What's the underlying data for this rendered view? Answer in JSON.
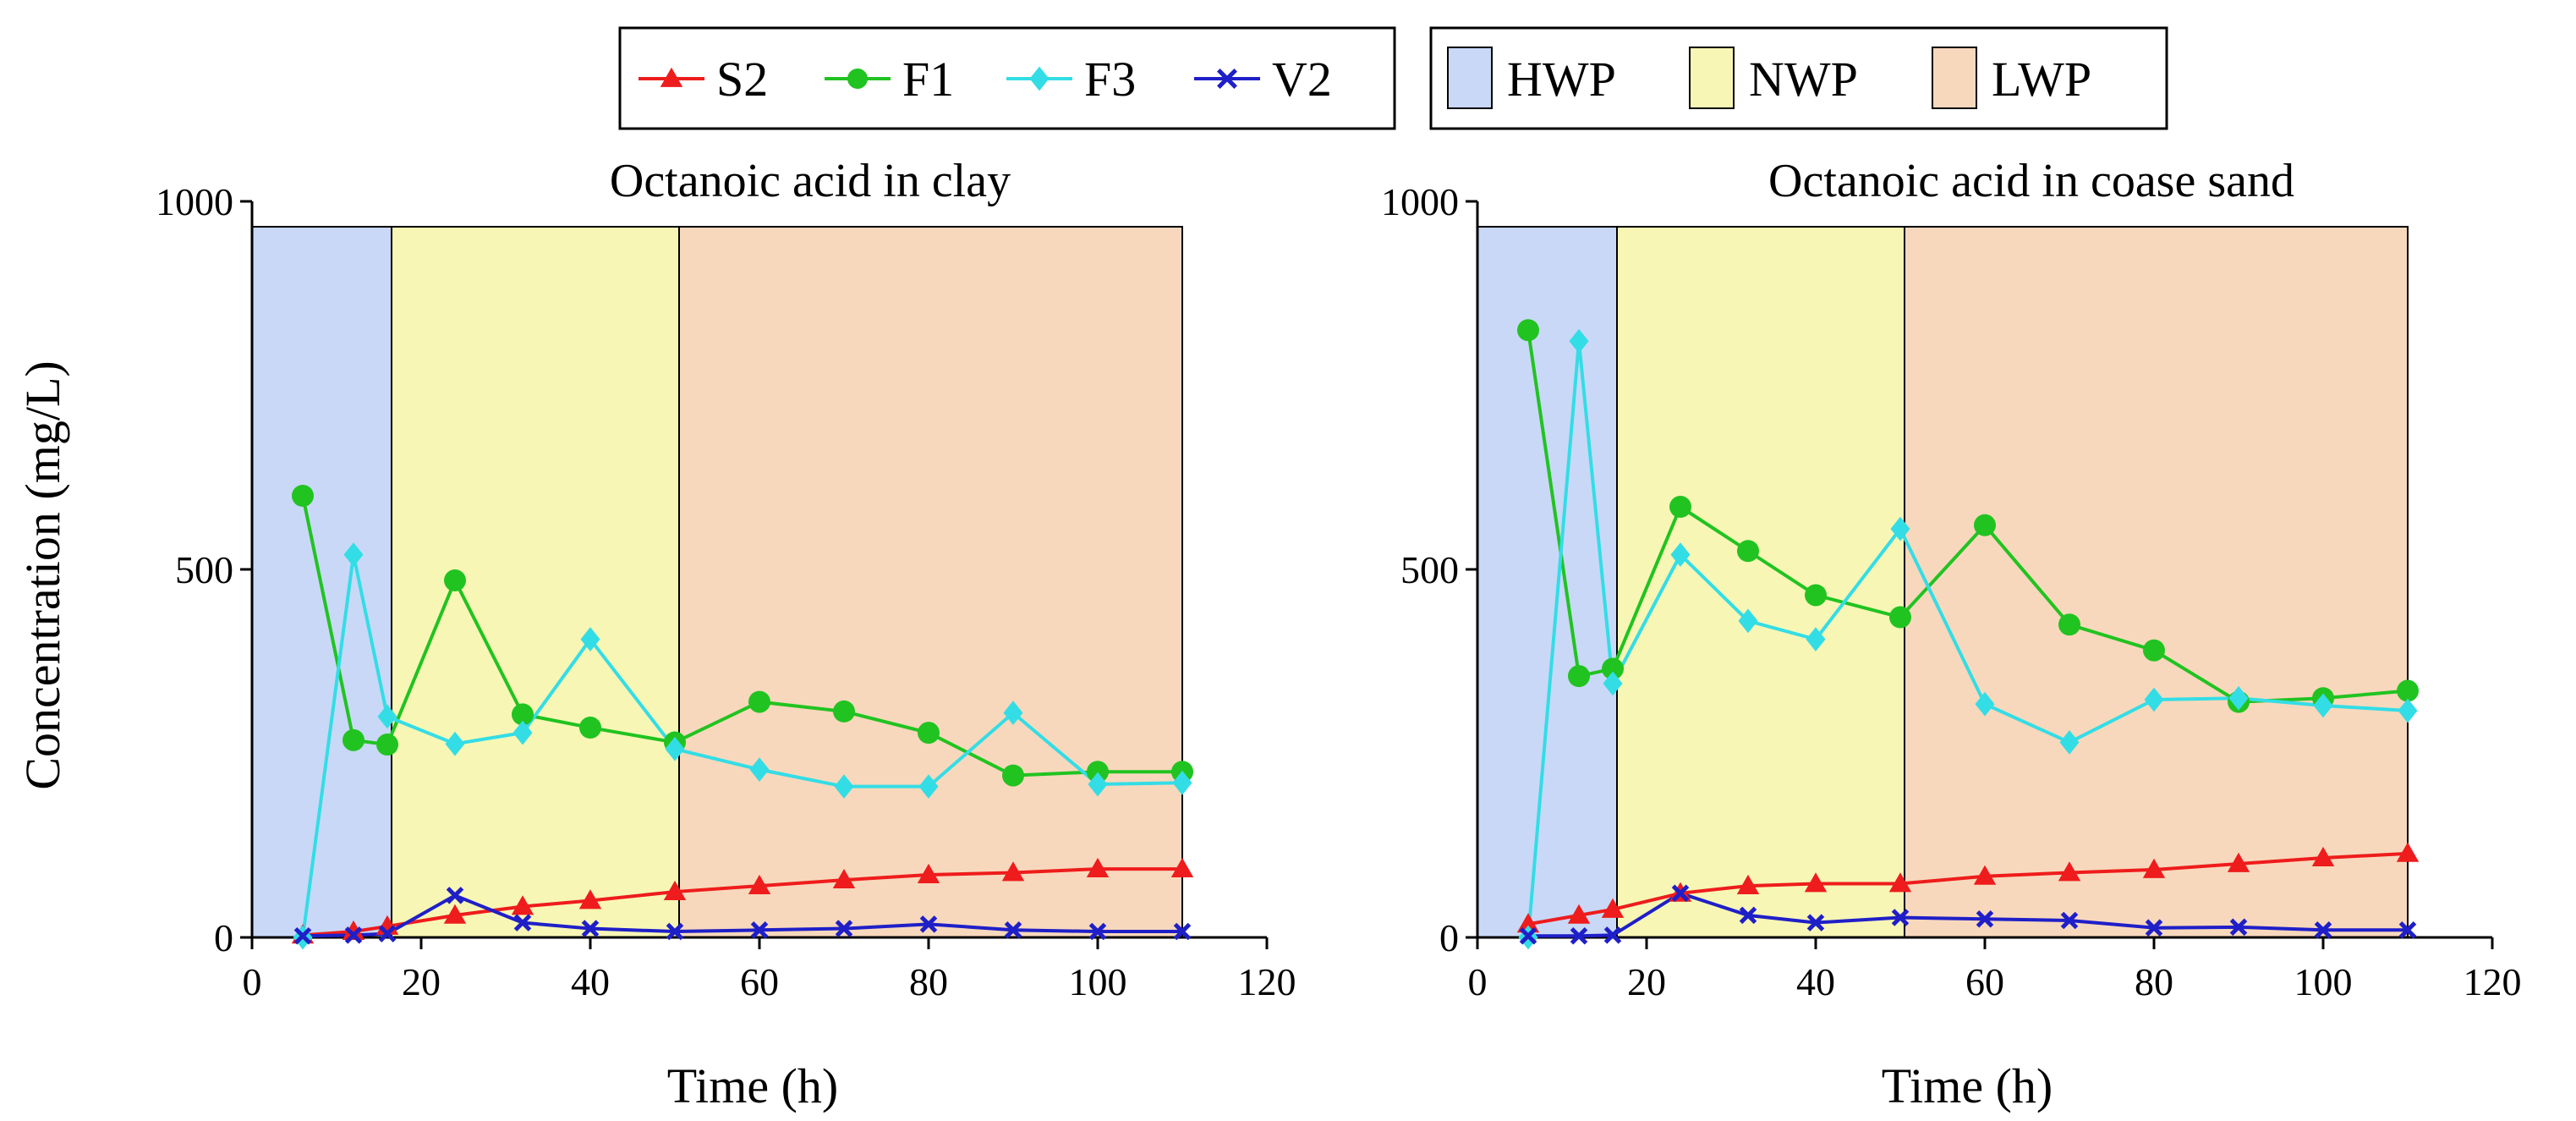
{
  "legend": {
    "series": [
      {
        "label": "S2",
        "color": "#ee1c1c",
        "marker": "triangle"
      },
      {
        "label": "F1",
        "color": "#21c321",
        "marker": "circle"
      },
      {
        "label": "F3",
        "color": "#33dde6",
        "marker": "diamond"
      },
      {
        "label": "V2",
        "color": "#1f1fc8",
        "marker": "x"
      }
    ],
    "phases": [
      {
        "label": "HWP",
        "color": "#c9d8f7"
      },
      {
        "label": "NWP",
        "color": "#f7f6b5"
      },
      {
        "label": "LWP",
        "color": "#f8d8bc"
      }
    ]
  },
  "y_axis_title": "Concentration (mg/L)",
  "chart_data": [
    {
      "type": "line",
      "title": "Octanoic acid in clay",
      "xlabel": "Time (h)",
      "ylabel": "Concentration (mg/L)",
      "xlim": [
        0,
        120
      ],
      "ylim": [
        0,
        1000
      ],
      "xticks": [
        0,
        20,
        40,
        60,
        80,
        100,
        120
      ],
      "yticks": [
        0,
        500,
        1000
      ],
      "phases": [
        {
          "label": "HWP",
          "start": 0,
          "end": 16.5
        },
        {
          "label": "NWP",
          "start": 16.5,
          "end": 50.5
        },
        {
          "label": "LWP",
          "start": 50.5,
          "end": 110
        }
      ],
      "series": [
        {
          "name": "S2",
          "x": [
            6,
            12,
            16,
            24,
            32,
            40,
            50,
            60,
            70,
            80,
            90,
            100,
            110
          ],
          "y": [
            3,
            8,
            15,
            30,
            42,
            50,
            62,
            70,
            78,
            85,
            88,
            93,
            93
          ]
        },
        {
          "name": "F1",
          "x": [
            6,
            12,
            16,
            24,
            32,
            40,
            50,
            60,
            70,
            80,
            90,
            100,
            110
          ],
          "y": [
            600,
            268,
            262,
            485,
            303,
            285,
            265,
            320,
            307,
            278,
            220,
            225,
            225
          ]
        },
        {
          "name": "F3",
          "x": [
            6,
            12,
            16,
            24,
            32,
            40,
            50,
            60,
            70,
            80,
            90,
            100,
            110
          ],
          "y": [
            0,
            520,
            300,
            263,
            278,
            405,
            256,
            228,
            205,
            205,
            305,
            208,
            210
          ]
        },
        {
          "name": "V2",
          "x": [
            6,
            12,
            16,
            24,
            32,
            40,
            50,
            60,
            70,
            80,
            90,
            100,
            110
          ],
          "y": [
            2,
            3,
            5,
            57,
            20,
            12,
            8,
            10,
            12,
            18,
            10,
            8,
            8
          ]
        }
      ]
    },
    {
      "type": "line",
      "title": "Octanoic acid in coase sand",
      "xlabel": "Time (h)",
      "ylabel": "Concentration (mg/L)",
      "xlim": [
        0,
        120
      ],
      "ylim": [
        0,
        1000
      ],
      "xticks": [
        0,
        20,
        40,
        60,
        80,
        100,
        120
      ],
      "yticks": [
        0,
        500,
        1000
      ],
      "phases": [
        {
          "label": "HWP",
          "start": 0,
          "end": 16.5
        },
        {
          "label": "NWP",
          "start": 16.5,
          "end": 50.5
        },
        {
          "label": "LWP",
          "start": 50.5,
          "end": 110
        }
      ],
      "series": [
        {
          "name": "S2",
          "x": [
            6,
            12,
            16,
            24,
            32,
            40,
            50,
            60,
            70,
            80,
            90,
            100,
            110
          ],
          "y": [
            18,
            30,
            38,
            60,
            70,
            73,
            73,
            83,
            88,
            92,
            100,
            108,
            114
          ]
        },
        {
          "name": "F1",
          "x": [
            6,
            12,
            16,
            24,
            32,
            40,
            50,
            60,
            70,
            80,
            90,
            100,
            110
          ],
          "y": [
            825,
            355,
            365,
            585,
            525,
            465,
            435,
            560,
            425,
            390,
            320,
            325,
            335
          ]
        },
        {
          "name": "F3",
          "x": [
            6,
            12,
            16,
            24,
            32,
            40,
            50,
            60,
            70,
            80,
            90,
            100,
            110
          ],
          "y": [
            0,
            810,
            345,
            520,
            430,
            405,
            555,
            317,
            265,
            323,
            325,
            315,
            308
          ]
        },
        {
          "name": "V2",
          "x": [
            6,
            12,
            16,
            24,
            32,
            40,
            50,
            60,
            70,
            80,
            90,
            100,
            110
          ],
          "y": [
            2,
            2,
            3,
            60,
            30,
            20,
            27,
            25,
            23,
            13,
            14,
            10,
            10
          ]
        }
      ]
    }
  ]
}
